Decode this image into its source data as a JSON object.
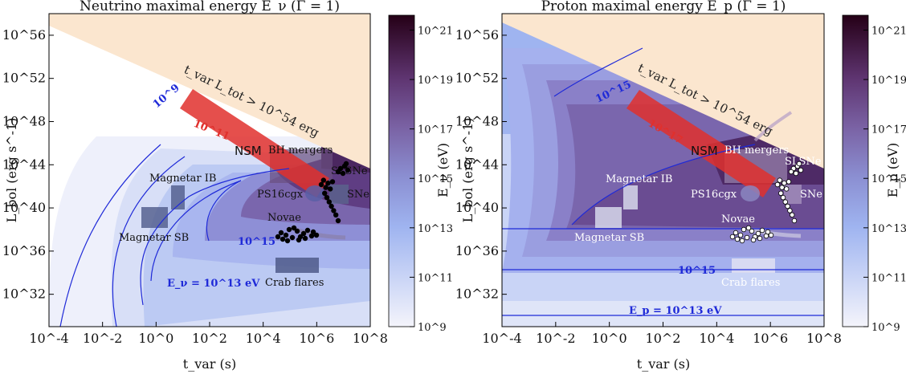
{
  "figure": {
    "x_axis_label": "t_var (s)",
    "y_axis_label": "L_bol (erg s^-1)",
    "x_ticks": [
      {
        "value": -4,
        "label": "10^-4"
      },
      {
        "value": -2,
        "label": "10^-2"
      },
      {
        "value": 0,
        "label": "10^0"
      },
      {
        "value": 2,
        "label": "10^2"
      },
      {
        "value": 4,
        "label": "10^4"
      },
      {
        "value": 6,
        "label": "10^6"
      },
      {
        "value": 8,
        "label": "10^8"
      }
    ],
    "y_ticks": [
      {
        "value": 32,
        "label": "10^32"
      },
      {
        "value": 36,
        "label": "10^36"
      },
      {
        "value": 40,
        "label": "10^40"
      },
      {
        "value": 44,
        "label": "10^44"
      },
      {
        "value": 48,
        "label": "10^48"
      },
      {
        "value": 52,
        "label": "10^52"
      },
      {
        "value": 56,
        "label": "10^56"
      }
    ],
    "colorbar_ticks": [
      {
        "value": 9,
        "label": "10^9"
      },
      {
        "value": 11,
        "label": "10^11"
      },
      {
        "value": 13,
        "label": "10^13"
      },
      {
        "value": 15,
        "label": "10^15"
      },
      {
        "value": 17,
        "label": "10^17"
      },
      {
        "value": 19,
        "label": "10^19"
      },
      {
        "value": 21,
        "label": "10^21"
      }
    ],
    "exclusion_label": "t_var L_tot > 10^54 erg",
    "source_labels": {
      "nsm": "NSM",
      "bh_mergers": "BH mergers",
      "slsne": "SLSNe",
      "ps16cgx": "PS16cgx",
      "sne": "SNe",
      "magnetar_ib": "Magnetar IB",
      "magnetar_sb": "Magnetar SB",
      "novae": "Novae",
      "crab_flares": "Crab flares"
    }
  },
  "chart_data": [
    {
      "type": "heatmap",
      "title": "Neutrino maximal energy E_ν (Γ = 1)",
      "xlabel": "t_var (s)",
      "ylabel": "L_bol (erg s^-1)",
      "colorbar_label": "E_ν (eV)",
      "xlim_log10": [
        -4,
        8
      ],
      "ylim_log10": [
        29,
        58
      ],
      "colorbar_log10_range": [
        9,
        21.6
      ],
      "contour_labels": [
        {
          "level_log10": 9,
          "label": "10^9"
        },
        {
          "level_log10": 11,
          "label": "10^11"
        },
        {
          "level_log10": 15,
          "label": "10^15"
        },
        {
          "level_log10": 13,
          "label": "E_ν = 10^13 eV"
        }
      ]
    },
    {
      "type": "heatmap",
      "title": "Proton maximal energy E_p (Γ = 1)",
      "xlabel": "t_var (s)",
      "ylabel": "L_bol (erg s^-1)",
      "colorbar_label": "E_p (eV)",
      "xlim_log10": [
        -4,
        8
      ],
      "ylim_log10": [
        29,
        58
      ],
      "colorbar_log10_range": [
        9,
        21.6
      ],
      "contour_labels": [
        {
          "level_log10": 15,
          "label": "10^15"
        },
        {
          "level_log10": 17,
          "label": "10^17"
        },
        {
          "level_log10": 15,
          "label": "10^15"
        },
        {
          "level_log10": 13,
          "label": "E_p = 10^13 eV"
        }
      ]
    }
  ]
}
